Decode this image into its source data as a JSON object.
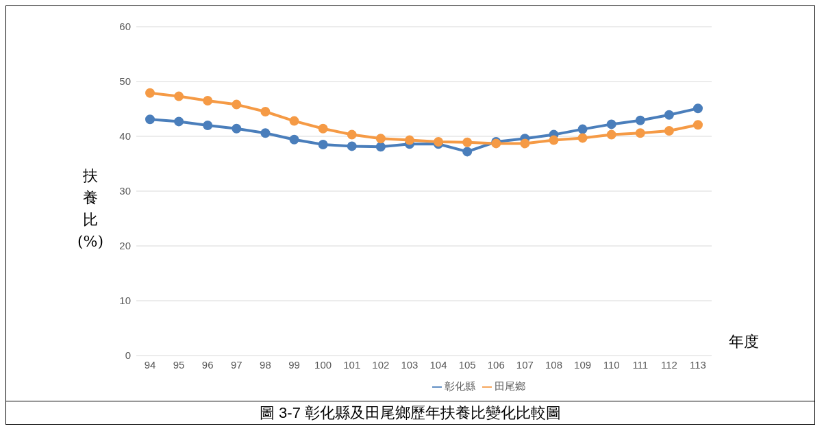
{
  "chart_data": {
    "type": "line",
    "ylabel": "扶養比(%)",
    "xlabel": "年度",
    "annotations": [
      "圖 3-7 彰化縣及田尾鄉歷年扶養比變化比較圖"
    ],
    "categories": [
      "94",
      "95",
      "96",
      "97",
      "98",
      "99",
      "100",
      "101",
      "102",
      "103",
      "104",
      "105",
      "106",
      "107",
      "108",
      "109",
      "110",
      "111",
      "112",
      "113"
    ],
    "series": [
      {
        "name": "彰化縣",
        "color": "#4a7ebb",
        "values": [
          43.1,
          42.7,
          42.0,
          41.4,
          40.6,
          39.4,
          38.5,
          38.2,
          38.1,
          38.6,
          38.6,
          37.2,
          39.0,
          39.6,
          40.3,
          41.3,
          42.2,
          42.9,
          43.9,
          45.1
        ]
      },
      {
        "name": "田尾鄉",
        "color": "#f59a45",
        "values": [
          47.9,
          47.3,
          46.5,
          45.8,
          44.5,
          42.8,
          41.4,
          40.3,
          39.6,
          39.3,
          39.0,
          38.9,
          38.7,
          38.7,
          39.3,
          39.7,
          40.3,
          40.6,
          41.0,
          42.1
        ]
      }
    ],
    "ylim": [
      0,
      60
    ],
    "yticks": [
      0,
      10,
      20,
      30,
      40,
      50,
      60
    ],
    "grid": "y",
    "legend": "bottom",
    "marker": "circle",
    "line_style": "solid"
  }
}
